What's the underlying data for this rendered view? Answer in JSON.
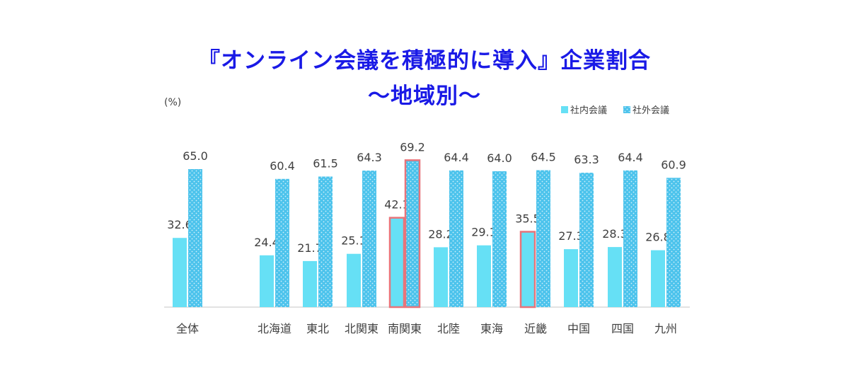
{
  "chart_data": {
    "type": "bar",
    "title": "『オンライン会議を積極的に導入』企業割合",
    "subtitle": "～地域別～",
    "ylabel": "(%)",
    "xlabel": "",
    "ylim": [
      0,
      75
    ],
    "grid": false,
    "legend_position": "top-right",
    "categories": [
      "全体",
      "北海道",
      "東北",
      "北関東",
      "南関東",
      "北陸",
      "東海",
      "近畿",
      "中国",
      "四国",
      "九州"
    ],
    "series": [
      {
        "name": "社内会議",
        "color": "#66e0f5",
        "values": [
          32.6,
          24.4,
          21.7,
          25.1,
          42.1,
          28.2,
          29.1,
          35.5,
          27.3,
          28.3,
          26.8
        ],
        "labels": [
          "32.6",
          "24.4",
          "21.7",
          "25.1",
          "42.1",
          "28.2",
          "29.1",
          "35.5",
          "27.3",
          "28.3",
          "26.8"
        ]
      },
      {
        "name": "社外会議",
        "color": "#4cc3ec",
        "values": [
          65.0,
          60.4,
          61.5,
          64.3,
          69.2,
          64.4,
          64.0,
          64.5,
          63.3,
          64.4,
          60.9
        ],
        "labels": [
          "65.0",
          "60.4",
          "61.5",
          "64.3",
          "69.2",
          "64.4",
          "64.0",
          "64.5",
          "63.3",
          "64.4",
          "60.9"
        ]
      }
    ],
    "highlights": [
      {
        "series": 0,
        "category": "南関東",
        "color": "#e8747a"
      },
      {
        "series": 1,
        "category": "南関東",
        "color": "#e8747a"
      },
      {
        "series": 0,
        "category": "近畿",
        "color": "#e8747a"
      }
    ]
  }
}
